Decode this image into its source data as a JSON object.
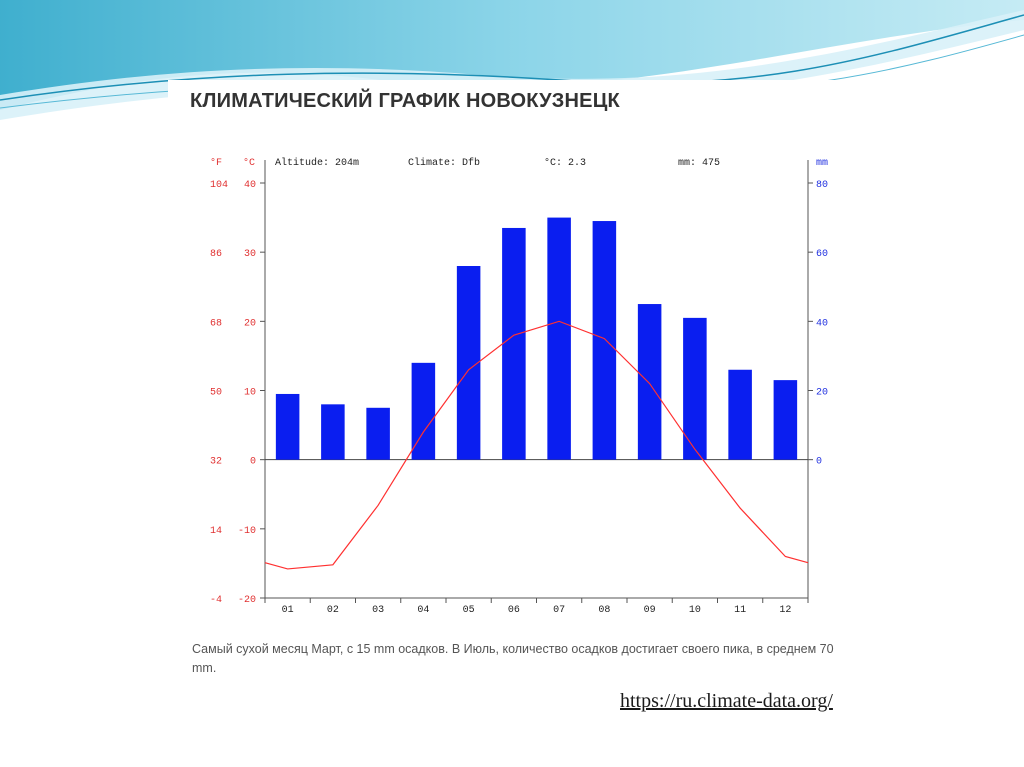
{
  "title": "КЛИМАТИЧЕСКИЙ ГРАФИК НОВОКУЗНЕЦК",
  "info": {
    "altitude": "Altitude: 204m",
    "climate": "Climate: Dfb",
    "avg_temp": "°C: 2.3",
    "precip": "mm: 475"
  },
  "caption": "Самый сухой месяц Март, с 15 mm осадков. В Июль, количество осадков достигает своего пика, в среднем 70 mm.",
  "source_link": "https://ru.climate-data.org/",
  "colors": {
    "bars": "#0a1ef0",
    "temp_line": "#ff3030",
    "left_axis": "#e03030",
    "right_axis": "#2030e0"
  },
  "chart_data": {
    "type": "bar",
    "categories": [
      "01",
      "02",
      "03",
      "04",
      "05",
      "06",
      "07",
      "08",
      "09",
      "10",
      "11",
      "12"
    ],
    "series": [
      {
        "type": "bar",
        "axis": "right",
        "values": [
          19,
          16,
          15,
          28,
          56,
          67,
          70,
          69,
          45,
          41,
          26,
          23
        ]
      },
      {
        "type": "line",
        "axis": "left",
        "values": [
          -15.8,
          -15.2,
          -6.6,
          4.0,
          13.0,
          18.0,
          20.0,
          17.5,
          11.0,
          1.5,
          -7.0,
          -14.0
        ]
      }
    ],
    "left_axis_c": {
      "label": "°C",
      "ticks": [
        40,
        30,
        20,
        10,
        0,
        -10,
        -20
      ],
      "ylim": [
        -20,
        40
      ]
    },
    "left_axis_f": {
      "label": "°F",
      "ticks": [
        104,
        86,
        68,
        50,
        32,
        14,
        -4
      ]
    },
    "right_axis": {
      "label": "mm",
      "ticks": [
        80,
        60,
        40,
        20,
        0
      ],
      "ylim": [
        0,
        80
      ]
    },
    "grid": false
  }
}
